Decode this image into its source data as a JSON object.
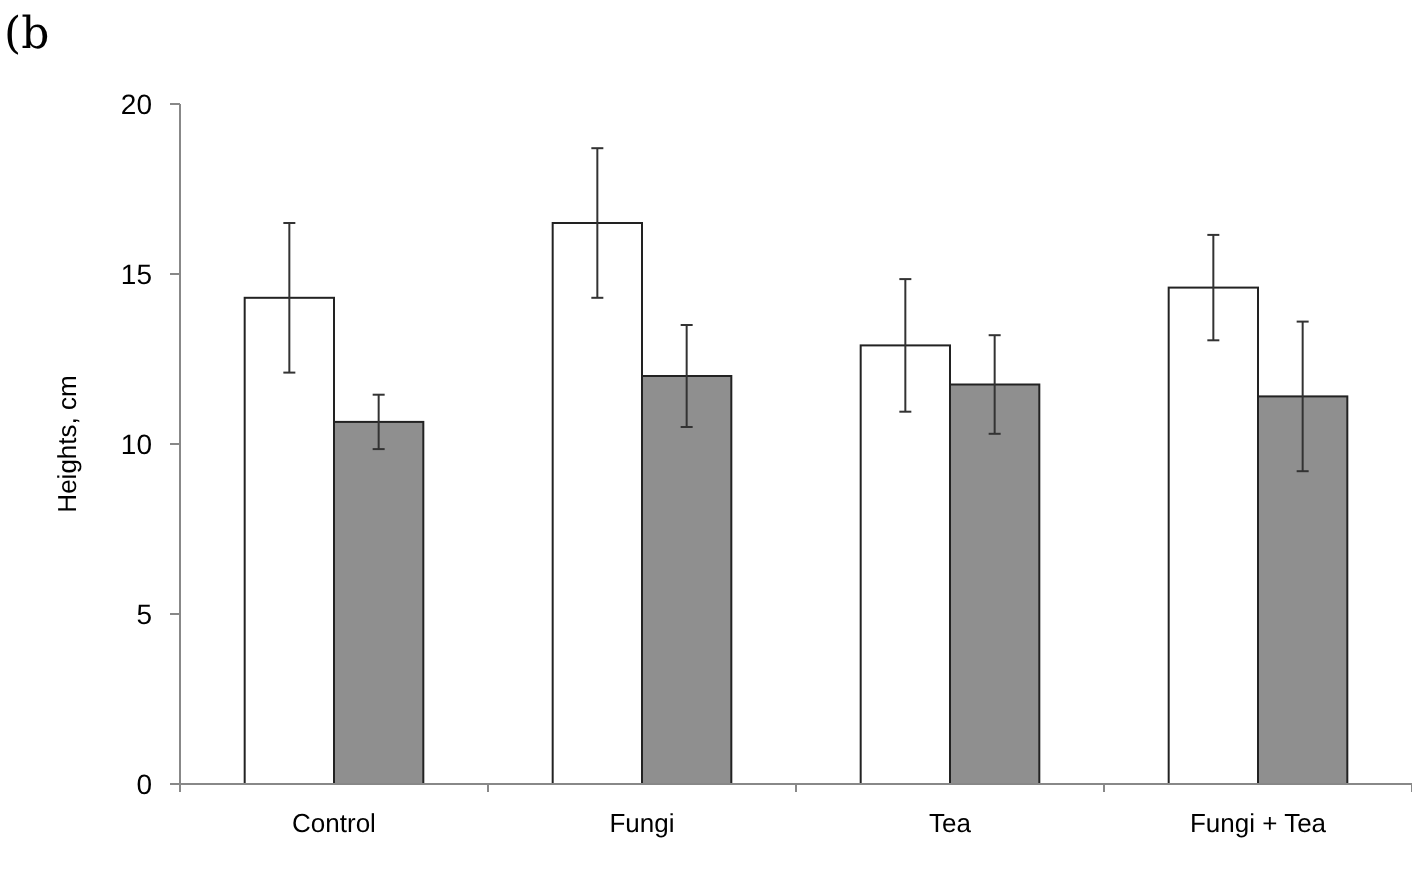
{
  "chart_data": {
    "type": "bar",
    "title": "(b",
    "ylabel": "Heights, cm",
    "categories": [
      "Control",
      "Fungi",
      "Tea",
      "Fungi + Tea"
    ],
    "series": [
      {
        "color": "#ffffff",
        "values": [
          14.3,
          16.5,
          12.9,
          14.6
        ],
        "errors": [
          2.2,
          2.2,
          1.95,
          1.55
        ]
      },
      {
        "color": "#8f8f8f",
        "values": [
          10.65,
          12.0,
          11.75,
          11.4
        ],
        "errors": [
          0.8,
          1.5,
          1.45,
          2.2
        ]
      }
    ],
    "ylim": [
      0,
      20
    ],
    "yticks": [
      0,
      5,
      10,
      15,
      20
    ],
    "grid": false
  }
}
